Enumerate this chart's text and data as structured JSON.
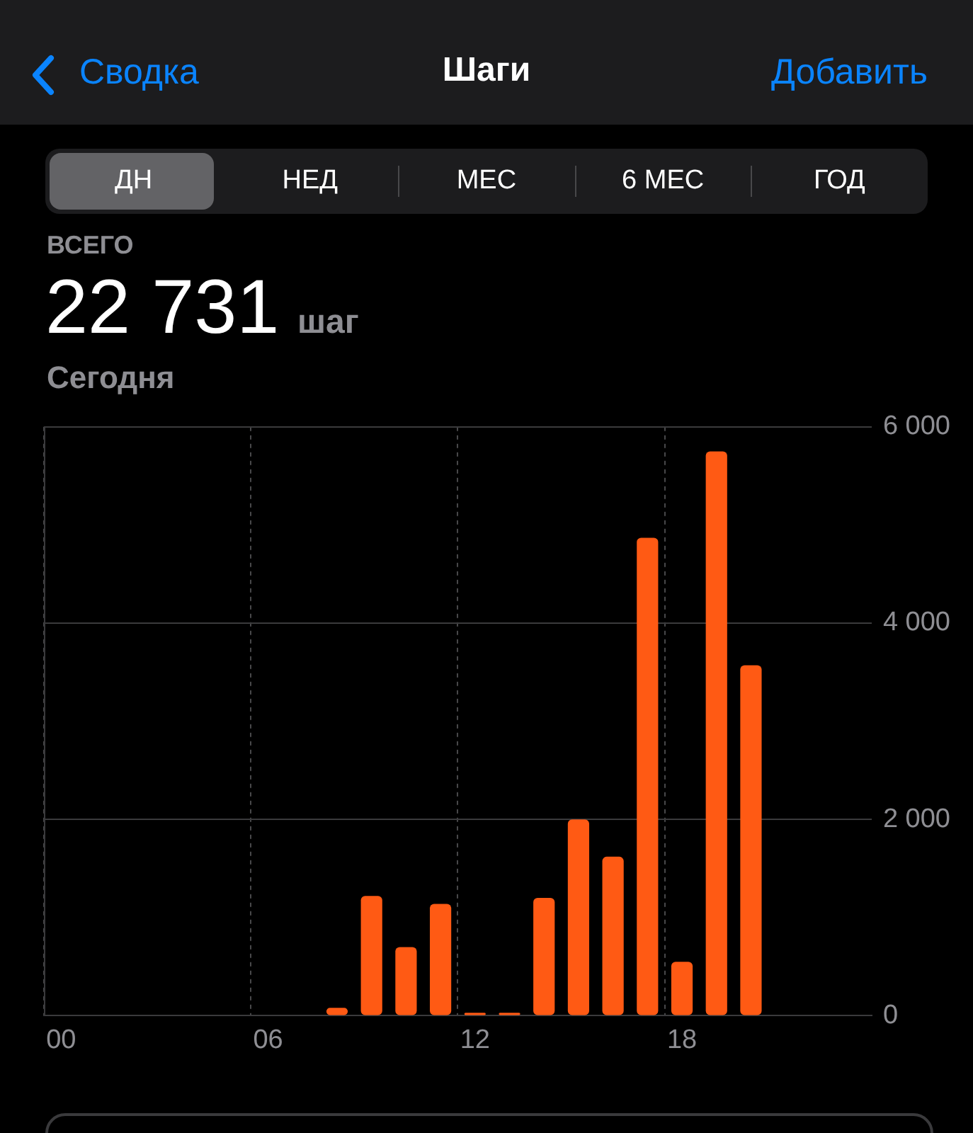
{
  "chart_data": {
    "type": "bar",
    "title": "Шаги",
    "annotations": [
      "Сводка",
      "Добавить",
      "ДН",
      "НЕД",
      "МЕС",
      "6 МЕС",
      "ГОД",
      "ВСЕГО",
      "22 731",
      "шаг",
      "Сегодня"
    ],
    "categories": [
      "00",
      null,
      null,
      null,
      null,
      null,
      "06",
      null,
      null,
      null,
      null,
      null,
      "12",
      null,
      null,
      null,
      null,
      null,
      "18",
      null,
      null,
      null,
      null,
      null
    ],
    "values": [
      0,
      0,
      0,
      0,
      0,
      0,
      0,
      0,
      80,
      1220,
      700,
      1140,
      30,
      30,
      1200,
      2000,
      1620,
      4870,
      550,
      5750,
      3570,
      0,
      0,
      0
    ],
    "color": "#ff5a14",
    "ylim": [
      0,
      6000
    ],
    "yticks": [
      {
        "value": 0,
        "label": "0"
      },
      {
        "value": 2000,
        "label": "2 000"
      },
      {
        "value": 4000,
        "label": "4 000"
      },
      {
        "value": 6000,
        "label": "6 000"
      }
    ],
    "grid": true
  }
}
